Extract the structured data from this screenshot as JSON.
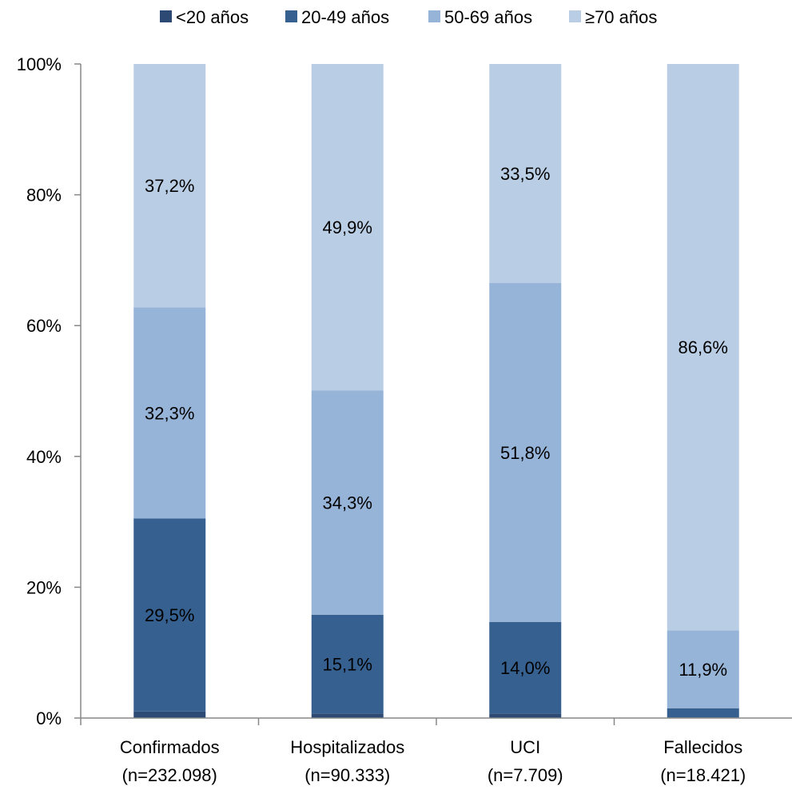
{
  "chart_data": {
    "type": "bar",
    "stacked": true,
    "percent": true,
    "categories": [
      [
        "Confirmados",
        "(n=232.098)"
      ],
      [
        "Hospitalizados",
        "(n=90.333)"
      ],
      [
        "UCI",
        "(n=7.709)"
      ],
      [
        "Fallecidos",
        "(n=18.421)"
      ]
    ],
    "series": [
      {
        "name": "<20 años",
        "color": "#2c4a74",
        "values": [
          1.0,
          0.7,
          0.7,
          0.1
        ],
        "labels": [
          "",
          "",
          "",
          ""
        ]
      },
      {
        "name": "20-49 años",
        "color": "#35608f",
        "values": [
          29.5,
          15.1,
          14.0,
          1.4
        ],
        "labels": [
          "29,5%",
          "15,1%",
          "14,0%",
          ""
        ]
      },
      {
        "name": "50-69 años",
        "color": "#96b3d8",
        "values": [
          32.3,
          34.3,
          51.8,
          11.9
        ],
        "labels": [
          "32,3%",
          "34,3%",
          "51,8%",
          "11,9%"
        ]
      },
      {
        "name": "≥70 años",
        "color": "#b9cde5",
        "values": [
          37.2,
          49.9,
          33.5,
          86.6
        ],
        "labels": [
          "37,2%",
          "49,9%",
          "33,5%",
          "86,6%"
        ]
      }
    ],
    "y_ticks": [
      "0%",
      "20%",
      "40%",
      "60%",
      "80%",
      "100%"
    ],
    "ylim": [
      0,
      100
    ],
    "legend_position": "top",
    "grid": false
  }
}
